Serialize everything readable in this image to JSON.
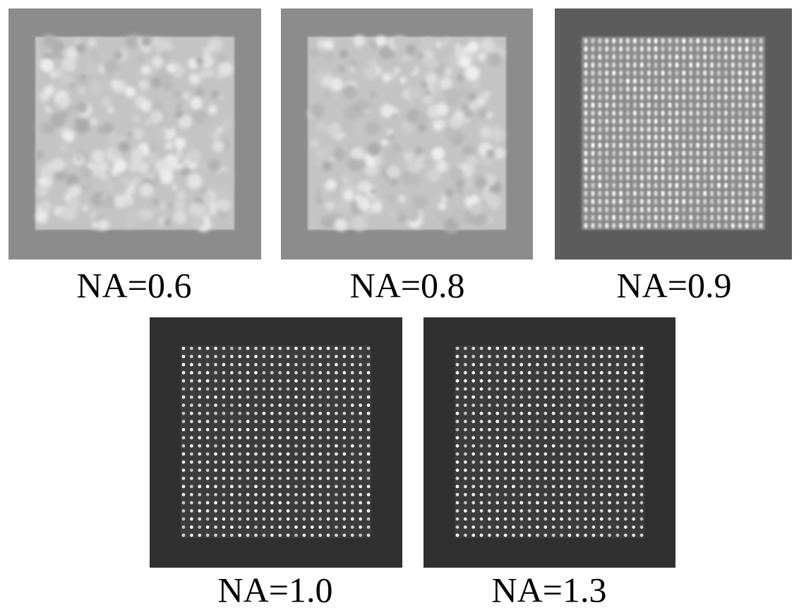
{
  "panels": [
    {
      "label": "NA=0.6"
    },
    {
      "label": "NA=0.8"
    },
    {
      "label": "NA=0.9"
    },
    {
      "label": "NA=1.0"
    },
    {
      "label": "NA=1.3"
    }
  ]
}
